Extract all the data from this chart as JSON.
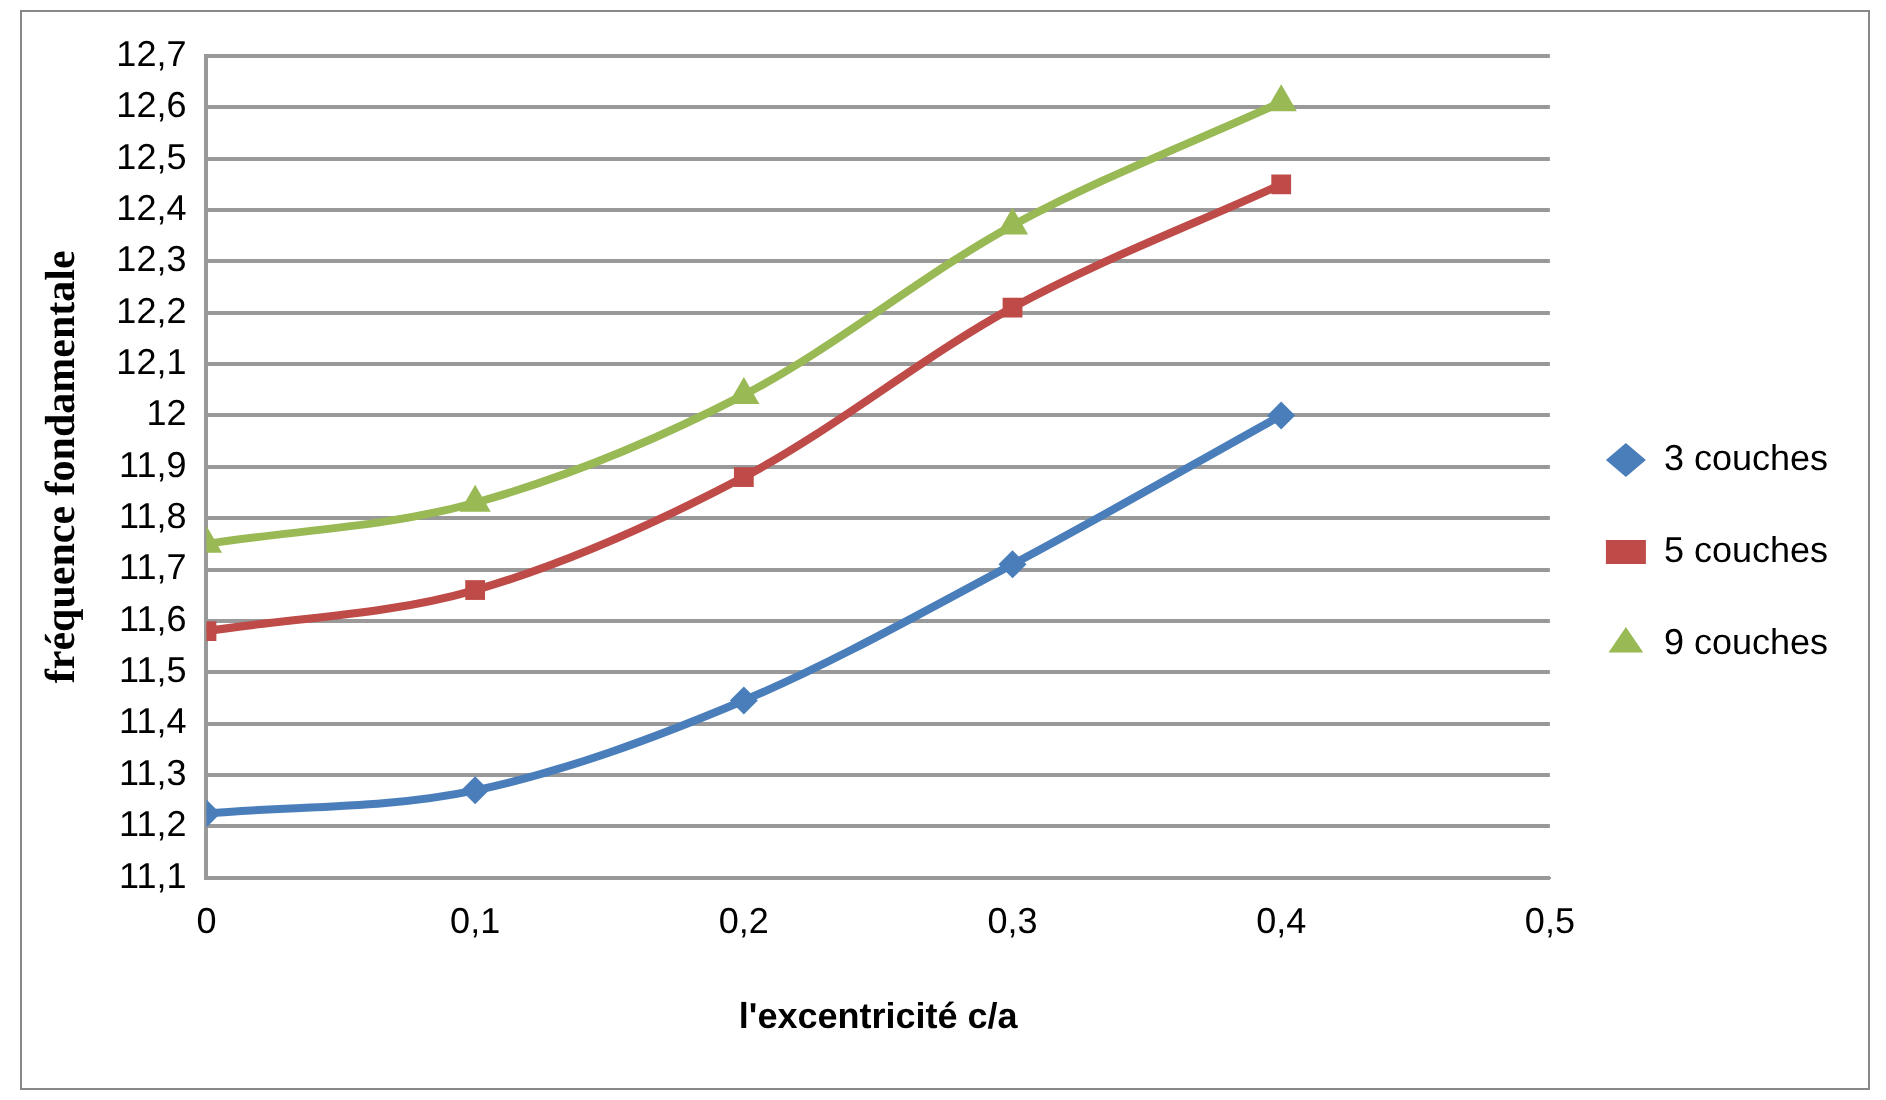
{
  "chart_data": {
    "type": "line",
    "xlabel": "l'excentricité c/a",
    "ylabel": "fréquence fondamentale",
    "x": [
      0,
      0.1,
      0.2,
      0.3,
      0.4
    ],
    "series": [
      {
        "name": "3 couches",
        "color": "#4a7ebb",
        "marker": "diamond",
        "values": [
          11.225,
          11.27,
          11.445,
          11.71,
          12.0
        ]
      },
      {
        "name": "5 couches",
        "color": "#be4b48",
        "marker": "square",
        "values": [
          11.58,
          11.66,
          11.88,
          12.21,
          12.45
        ]
      },
      {
        "name": "9 couches",
        "color": "#98b954",
        "marker": "triangle",
        "values": [
          11.75,
          11.83,
          12.04,
          12.37,
          12.61
        ]
      }
    ],
    "xlim": [
      0,
      0.5
    ],
    "xticks": [
      {
        "value": 0,
        "label": "0"
      },
      {
        "value": 0.1,
        "label": "0,1"
      },
      {
        "value": 0.2,
        "label": "0,2"
      },
      {
        "value": 0.3,
        "label": "0,3"
      },
      {
        "value": 0.4,
        "label": "0,4"
      },
      {
        "value": 0.5,
        "label": "0,5"
      }
    ],
    "ylim": [
      11.1,
      12.7
    ],
    "yticks": [
      {
        "value": 11.1,
        "label": "11,1"
      },
      {
        "value": 11.2,
        "label": "11,2"
      },
      {
        "value": 11.3,
        "label": "11,3"
      },
      {
        "value": 11.4,
        "label": "11,4"
      },
      {
        "value": 11.5,
        "label": "11,5"
      },
      {
        "value": 11.6,
        "label": "11,6"
      },
      {
        "value": 11.7,
        "label": "11,7"
      },
      {
        "value": 11.8,
        "label": "11,8"
      },
      {
        "value": 11.9,
        "label": "11,9"
      },
      {
        "value": 12,
        "label": "12"
      },
      {
        "value": 12.1,
        "label": "12,1"
      },
      {
        "value": 12.2,
        "label": "12,2"
      },
      {
        "value": 12.3,
        "label": "12,3"
      },
      {
        "value": 12.4,
        "label": "12,4"
      },
      {
        "value": 12.5,
        "label": "12,5"
      },
      {
        "value": 12.6,
        "label": "12,6"
      },
      {
        "value": 12.7,
        "label": "12,7"
      }
    ],
    "grid": "y",
    "legend": "right"
  }
}
